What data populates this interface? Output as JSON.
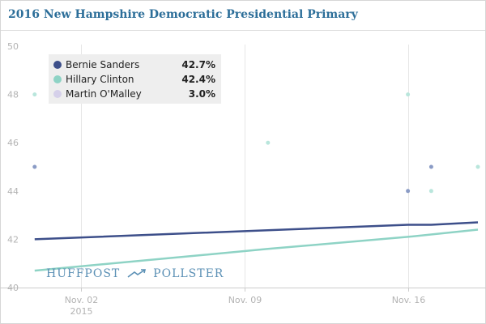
{
  "chart_data": {
    "type": "line",
    "title": "2016 New Hampshire Democratic Presidential Primary",
    "xlabel": "",
    "ylabel": "",
    "ylim": [
      40,
      50
    ],
    "yticks": [
      40,
      42,
      44,
      46,
      48,
      50
    ],
    "xlim": [
      "2015-10-30",
      "2015-11-19"
    ],
    "xticks": [
      {
        "date": "2015-11-02",
        "label": "Nov. 02",
        "sublabel": "2015"
      },
      {
        "date": "2015-11-09",
        "label": "Nov. 09",
        "sublabel": ""
      },
      {
        "date": "2015-11-16",
        "label": "Nov. 16",
        "sublabel": ""
      }
    ],
    "grid": "vertical",
    "legend_position": "top-left",
    "series": [
      {
        "name": "Bernie Sanders",
        "value_label": "42.7%",
        "color": "#3d4f8a",
        "point_color": "#8a9bc5",
        "trend": [
          {
            "x": "2015-10-31",
            "y": 42.0
          },
          {
            "x": "2015-11-16",
            "y": 42.6
          },
          {
            "x": "2015-11-17",
            "y": 42.6
          },
          {
            "x": "2015-11-19",
            "y": 42.7
          }
        ],
        "points": [
          {
            "x": "2015-10-31",
            "y": 45
          },
          {
            "x": "2015-11-16",
            "y": 44
          },
          {
            "x": "2015-11-17",
            "y": 45
          }
        ]
      },
      {
        "name": "Hillary Clinton",
        "value_label": "42.4%",
        "color": "#8ed3c5",
        "point_color": "#b9e6dc",
        "trend": [
          {
            "x": "2015-10-31",
            "y": 40.7
          },
          {
            "x": "2015-11-10",
            "y": 41.6
          },
          {
            "x": "2015-11-16",
            "y": 42.1
          },
          {
            "x": "2015-11-19",
            "y": 42.4
          }
        ],
        "points": [
          {
            "x": "2015-10-31",
            "y": 48
          },
          {
            "x": "2015-11-10",
            "y": 46
          },
          {
            "x": "2015-11-16",
            "y": 48
          },
          {
            "x": "2015-11-17",
            "y": 44
          },
          {
            "x": "2015-11-19",
            "y": 45
          }
        ]
      },
      {
        "name": "Martin O'Malley",
        "value_label": "3.0%",
        "color": "#d5d0ea",
        "point_color": "#d5d0ea",
        "trend": [],
        "points": []
      }
    ]
  },
  "watermark": {
    "brand_a": "HUFFPOST",
    "brand_b": "POLLSTER",
    "color": "#5b90b5"
  }
}
